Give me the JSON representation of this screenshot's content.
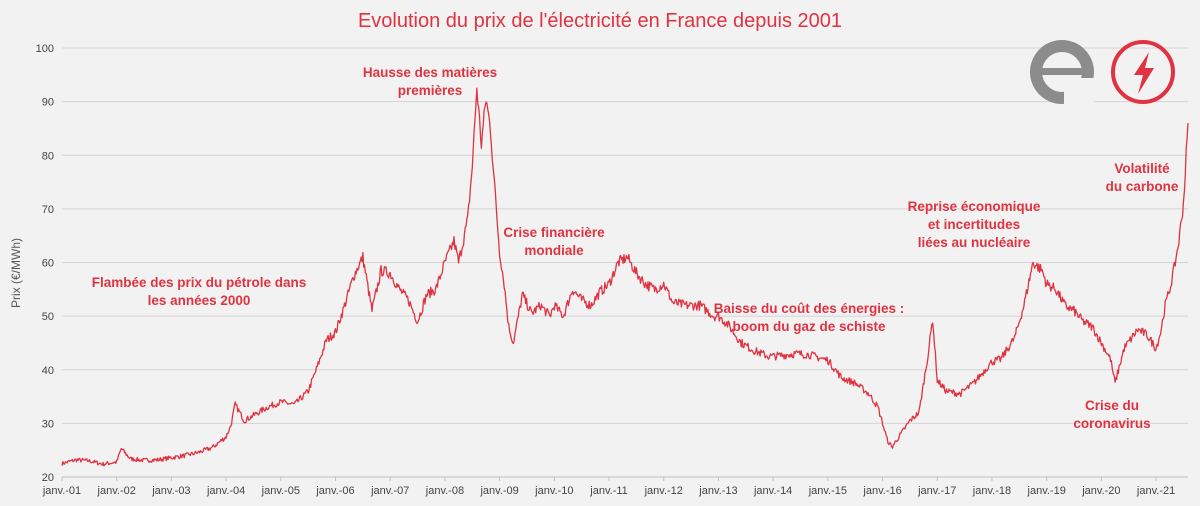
{
  "colors": {
    "series": "#e03341",
    "grid": "#d4d4d4",
    "background": "#f2f2f2",
    "logo_grey": "#8c8c8c"
  },
  "icons": [
    "logo-e-icon",
    "lightning-bolt-icon"
  ],
  "chart_data": {
    "type": "line",
    "title": "Evolution du prix de l'électricité en France depuis 2001",
    "ylabel": "Prix (€/MWh)",
    "xlabel": "",
    "ylim": [
      20,
      100
    ],
    "yticks": [
      20,
      30,
      40,
      50,
      60,
      70,
      80,
      90,
      100
    ],
    "xlim": [
      "2001-01",
      "2021-08"
    ],
    "xtick_labels": [
      "janv.-01",
      "janv.-02",
      "janv.-03",
      "janv.-04",
      "janv.-05",
      "janv.-06",
      "janv.-07",
      "janv.-08",
      "janv.-09",
      "janv.-10",
      "janv.-11",
      "janv.-12",
      "janv.-13",
      "janv.-14",
      "janv.-15",
      "janv.-16",
      "janv.-17",
      "janv.-18",
      "janv.-19",
      "janv.-20",
      "janv.-21"
    ],
    "grid": "horizontal",
    "series": [
      {
        "points": [
          [
            "2001-01",
            22.5
          ],
          [
            "2001-04",
            23.2
          ],
          [
            "2001-07",
            23.0
          ],
          [
            "2001-10",
            22.4
          ],
          [
            "2002-01",
            22.8
          ],
          [
            "2002-02",
            25.3
          ],
          [
            "2002-04",
            23.4
          ],
          [
            "2002-07",
            23.1
          ],
          [
            "2002-10",
            23.2
          ],
          [
            "2003-01",
            23.6
          ],
          [
            "2003-04",
            24.0
          ],
          [
            "2003-07",
            24.6
          ],
          [
            "2003-10",
            25.5
          ],
          [
            "2004-01",
            27.5
          ],
          [
            "2004-02",
            29.5
          ],
          [
            "2004-03",
            33.5
          ],
          [
            "2004-05",
            30.5
          ],
          [
            "2004-07",
            31.5
          ],
          [
            "2004-10",
            33.0
          ],
          [
            "2005-01",
            34.0
          ],
          [
            "2005-04",
            33.5
          ],
          [
            "2005-07",
            36.0
          ],
          [
            "2005-09",
            40.5
          ],
          [
            "2005-11",
            45.5
          ],
          [
            "2006-01",
            47.0
          ],
          [
            "2006-03",
            52.0
          ],
          [
            "2006-05",
            57.5
          ],
          [
            "2006-07",
            61.0
          ],
          [
            "2006-09",
            51.0
          ],
          [
            "2006-11",
            58.5
          ],
          [
            "2007-01",
            58.0
          ],
          [
            "2007-03",
            55.0
          ],
          [
            "2007-05",
            53.0
          ],
          [
            "2007-07",
            49.0
          ],
          [
            "2007-09",
            54.0
          ],
          [
            "2007-11",
            55.0
          ],
          [
            "2008-01",
            60.0
          ],
          [
            "2008-03",
            64.0
          ],
          [
            "2008-04",
            60.0
          ],
          [
            "2008-06",
            68.0
          ],
          [
            "2008-07",
            78.0
          ],
          [
            "2008-08",
            92.5
          ],
          [
            "2008-09",
            82.0
          ],
          [
            "2008-10",
            90.5
          ],
          [
            "2008-11",
            85.0
          ],
          [
            "2008-12",
            73.0
          ],
          [
            "2009-01",
            62.0
          ],
          [
            "2009-02",
            56.0
          ],
          [
            "2009-03",
            48.0
          ],
          [
            "2009-04",
            45.0
          ],
          [
            "2009-06",
            54.0
          ],
          [
            "2009-08",
            50.5
          ],
          [
            "2009-10",
            52.0
          ],
          [
            "2009-12",
            50.0
          ],
          [
            "2010-01",
            52.0
          ],
          [
            "2010-03",
            50.0
          ],
          [
            "2010-05",
            55.0
          ],
          [
            "2010-07",
            53.0
          ],
          [
            "2010-09",
            52.0
          ],
          [
            "2010-11",
            54.5
          ],
          [
            "2011-01",
            56.0
          ],
          [
            "2011-03",
            60.0
          ],
          [
            "2011-05",
            61.0
          ],
          [
            "2011-07",
            58.0
          ],
          [
            "2011-09",
            56.0
          ],
          [
            "2011-11",
            55.0
          ],
          [
            "2012-01",
            56.0
          ],
          [
            "2012-03",
            52.5
          ],
          [
            "2012-06",
            52.0
          ],
          [
            "2012-09",
            52.0
          ],
          [
            "2012-12",
            50.0
          ],
          [
            "2013-01",
            50.0
          ],
          [
            "2013-03",
            48.5
          ],
          [
            "2013-06",
            45.0
          ],
          [
            "2013-09",
            43.5
          ],
          [
            "2013-12",
            42.5
          ],
          [
            "2014-01",
            42.5
          ],
          [
            "2014-06",
            43.0
          ],
          [
            "2014-09",
            42.8
          ],
          [
            "2014-12",
            42.0
          ],
          [
            "2015-01",
            41.8
          ],
          [
            "2015-04",
            38.5
          ],
          [
            "2015-07",
            37.5
          ],
          [
            "2015-10",
            35.5
          ],
          [
            "2015-12",
            33.0
          ],
          [
            "2016-01",
            30.0
          ],
          [
            "2016-02",
            27.0
          ],
          [
            "2016-03",
            25.5
          ],
          [
            "2016-05",
            28.0
          ],
          [
            "2016-07",
            30.5
          ],
          [
            "2016-09",
            32.0
          ],
          [
            "2016-11",
            43.0
          ],
          [
            "2016-12",
            49.5
          ],
          [
            "2017-01",
            38.0
          ],
          [
            "2017-03",
            36.0
          ],
          [
            "2017-06",
            35.5
          ],
          [
            "2017-09",
            37.5
          ],
          [
            "2017-12",
            40.5
          ],
          [
            "2018-01",
            41.5
          ],
          [
            "2018-03",
            42.0
          ],
          [
            "2018-06",
            46.0
          ],
          [
            "2018-08",
            52.0
          ],
          [
            "2018-10",
            60.0
          ],
          [
            "2018-12",
            58.5
          ],
          [
            "2019-01",
            56.0
          ],
          [
            "2019-03",
            55.0
          ],
          [
            "2019-05",
            52.0
          ],
          [
            "2019-07",
            51.0
          ],
          [
            "2019-09",
            49.0
          ],
          [
            "2019-11",
            48.0
          ],
          [
            "2020-01",
            45.0
          ],
          [
            "2020-03",
            42.0
          ],
          [
            "2020-04",
            37.5
          ],
          [
            "2020-06",
            44.0
          ],
          [
            "2020-09",
            47.5
          ],
          [
            "2020-11",
            46.5
          ],
          [
            "2021-01",
            44.0
          ],
          [
            "2021-02",
            47.0
          ],
          [
            "2021-03",
            52.0
          ],
          [
            "2021-04",
            55.0
          ],
          [
            "2021-05",
            59.0
          ],
          [
            "2021-06",
            64.0
          ],
          [
            "2021-07",
            71.0
          ],
          [
            "2021-08",
            86.0
          ]
        ]
      }
    ],
    "annotations": [
      {
        "id": "petrole",
        "lines": [
          "Flambée des prix du pétrole dans",
          "les années 2000"
        ]
      },
      {
        "id": "matieres",
        "lines": [
          "Hausse des matières",
          "premières"
        ]
      },
      {
        "id": "crise-financiere",
        "lines": [
          "Crise financière",
          "mondiale"
        ]
      },
      {
        "id": "schiste",
        "lines": [
          "Baisse du coût des énergies :",
          "boom du gaz de schiste"
        ]
      },
      {
        "id": "reprise",
        "lines": [
          "Reprise économique",
          "et incertitudes",
          "liées au nucléaire"
        ]
      },
      {
        "id": "carbone",
        "lines": [
          "Volatilité",
          "du carbone"
        ]
      },
      {
        "id": "coronavirus",
        "lines": [
          "Crise du",
          "coronavirus"
        ]
      }
    ]
  }
}
